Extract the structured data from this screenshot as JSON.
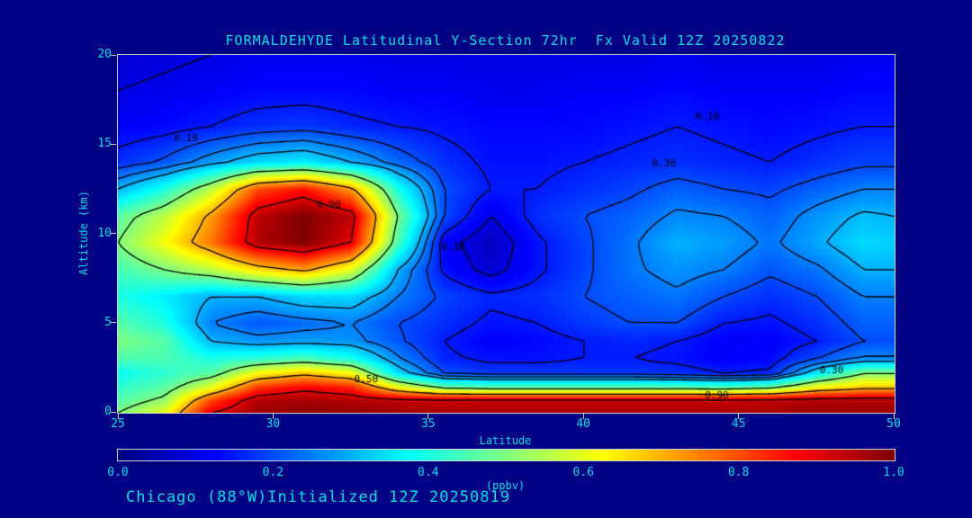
{
  "title": "FORMALDEHYDE Latitudinal Y-Section 72hr  Fx Valid 12Z 20250822",
  "caption": "Chicago (88°W)Initialized 12Z 20250819",
  "axes": {
    "x_label": "Latitude",
    "y_label": "Altitude (km)",
    "x_ticks": [
      25,
      30,
      35,
      40,
      45,
      50
    ],
    "y_ticks": [
      0,
      5,
      10,
      15,
      20
    ],
    "x_range": [
      25,
      50
    ],
    "y_range": [
      0,
      20
    ]
  },
  "colorbar": {
    "tick_labels": [
      "0.0",
      "0.2",
      "0.4",
      "0.6",
      "0.8",
      "1.0"
    ],
    "units": "(ppbv)"
  },
  "colors": {
    "background": "#000084",
    "text": "#00e0e0",
    "frame": "#c8d4d4",
    "contour": "#000000"
  },
  "chart_data": {
    "type": "heatmap",
    "title": "FORMALDEHYDE Latitudinal Y-Section 72hr  Fx Valid 12Z 20250822",
    "xlabel": "Latitude",
    "ylabel": "Altitude (km)",
    "units": "ppbv",
    "colormap": "jet",
    "value_range": [
      0,
      1
    ],
    "x": [
      25,
      26.5,
      28,
      29.5,
      31,
      32.5,
      34,
      35.5,
      37,
      38.5,
      40,
      41.5,
      43,
      44.5,
      46,
      47.5,
      49,
      50
    ],
    "y": [
      0,
      0.7,
      1.4,
      2.2,
      3,
      4,
      5,
      6.5,
      8,
      9.5,
      11,
      12.5,
      14,
      16,
      18,
      20
    ],
    "values": [
      [
        0.5,
        0.6,
        0.9,
        0.97,
        0.98,
        0.98,
        0.97,
        0.96,
        0.96,
        0.96,
        0.96,
        0.96,
        0.96,
        0.96,
        0.96,
        0.97,
        0.97,
        0.97
      ],
      [
        0.45,
        0.52,
        0.8,
        0.95,
        0.96,
        0.95,
        0.93,
        0.92,
        0.92,
        0.92,
        0.92,
        0.92,
        0.92,
        0.92,
        0.93,
        0.95,
        0.95,
        0.95
      ],
      [
        0.42,
        0.46,
        0.6,
        0.82,
        0.88,
        0.84,
        0.62,
        0.48,
        0.46,
        0.46,
        0.46,
        0.46,
        0.46,
        0.45,
        0.48,
        0.62,
        0.68,
        0.68
      ],
      [
        0.38,
        0.42,
        0.46,
        0.62,
        0.68,
        0.62,
        0.34,
        0.2,
        0.18,
        0.18,
        0.18,
        0.18,
        0.17,
        0.15,
        0.16,
        0.35,
        0.5,
        0.5
      ],
      [
        0.45,
        0.45,
        0.4,
        0.42,
        0.45,
        0.4,
        0.26,
        0.16,
        0.14,
        0.14,
        0.15,
        0.15,
        0.14,
        0.12,
        0.13,
        0.2,
        0.26,
        0.26
      ],
      [
        0.5,
        0.46,
        0.3,
        0.27,
        0.28,
        0.27,
        0.21,
        0.15,
        0.12,
        0.13,
        0.15,
        0.16,
        0.15,
        0.12,
        0.12,
        0.15,
        0.2,
        0.2
      ],
      [
        0.46,
        0.4,
        0.25,
        0.21,
        0.23,
        0.25,
        0.2,
        0.17,
        0.14,
        0.15,
        0.18,
        0.2,
        0.2,
        0.15,
        0.14,
        0.17,
        0.22,
        0.22
      ],
      [
        0.4,
        0.36,
        0.3,
        0.3,
        0.34,
        0.34,
        0.25,
        0.19,
        0.16,
        0.17,
        0.2,
        0.22,
        0.24,
        0.2,
        0.17,
        0.2,
        0.25,
        0.25
      ],
      [
        0.44,
        0.5,
        0.56,
        0.66,
        0.72,
        0.6,
        0.3,
        0.14,
        0.08,
        0.14,
        0.19,
        0.24,
        0.27,
        0.25,
        0.21,
        0.24,
        0.3,
        0.3
      ],
      [
        0.5,
        0.62,
        0.76,
        0.95,
        1.0,
        0.9,
        0.45,
        0.12,
        0.06,
        0.14,
        0.19,
        0.24,
        0.3,
        0.28,
        0.24,
        0.29,
        0.34,
        0.33
      ],
      [
        0.46,
        0.56,
        0.72,
        0.94,
        1.0,
        0.94,
        0.5,
        0.2,
        0.1,
        0.17,
        0.2,
        0.22,
        0.26,
        0.25,
        0.22,
        0.27,
        0.31,
        0.3
      ],
      [
        0.3,
        0.4,
        0.56,
        0.8,
        0.86,
        0.72,
        0.4,
        0.2,
        0.15,
        0.15,
        0.17,
        0.19,
        0.22,
        0.2,
        0.19,
        0.22,
        0.25,
        0.25
      ],
      [
        0.17,
        0.21,
        0.28,
        0.34,
        0.36,
        0.3,
        0.23,
        0.17,
        0.14,
        0.14,
        0.15,
        0.16,
        0.17,
        0.16,
        0.15,
        0.17,
        0.19,
        0.19
      ],
      [
        0.12,
        0.13,
        0.15,
        0.17,
        0.18,
        0.16,
        0.15,
        0.14,
        0.13,
        0.13,
        0.13,
        0.14,
        0.15,
        0.14,
        0.13,
        0.14,
        0.15,
        0.15
      ],
      [
        0.1,
        0.11,
        0.12,
        0.13,
        0.13,
        0.13,
        0.12,
        0.12,
        0.11,
        0.11,
        0.12,
        0.12,
        0.13,
        0.12,
        0.12,
        0.12,
        0.13,
        0.13
      ],
      [
        0.08,
        0.09,
        0.1,
        0.11,
        0.11,
        0.11,
        0.1,
        0.1,
        0.1,
        0.1,
        0.1,
        0.1,
        0.11,
        0.1,
        0.1,
        0.1,
        0.11,
        0.11
      ]
    ],
    "contour_levels": [
      0.1,
      0.15,
      0.2,
      0.25,
      0.3,
      0.5,
      0.7,
      0.9
    ],
    "contour_labels": [
      {
        "text": "0.10",
        "lat": 27.2,
        "alt": 15.3
      },
      {
        "text": "0.90",
        "lat": 31.8,
        "alt": 11.6
      },
      {
        "text": "0.10",
        "lat": 35.8,
        "alt": 9.2
      },
      {
        "text": "0.30",
        "lat": 42.6,
        "alt": 13.9
      },
      {
        "text": "0.10",
        "lat": 44.0,
        "alt": 16.5
      },
      {
        "text": "0.50",
        "lat": 33.0,
        "alt": 1.8
      },
      {
        "text": "0.90",
        "lat": 44.3,
        "alt": 0.9
      },
      {
        "text": "0.30",
        "lat": 48.0,
        "alt": 2.3
      }
    ]
  }
}
